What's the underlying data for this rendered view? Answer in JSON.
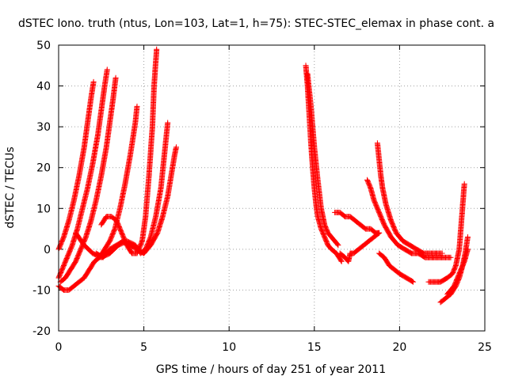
{
  "chart_data": {
    "type": "scatter",
    "title": "dSTEC Iono. truth (ntus, Lon=103, Lat=1, h=75): STEC-STEC_elemax in phase cont. a",
    "xlabel": "GPS time / hours of day 251 of year 2011",
    "ylabel": "dSTEC  / TECUs",
    "xlim": [
      0,
      25
    ],
    "ylim": [
      -20,
      50
    ],
    "xticks": [
      "0",
      "5",
      "10",
      "15",
      "20",
      "25"
    ],
    "yticks": [
      "-20",
      "-10",
      "0",
      "10",
      "20",
      "30",
      "40",
      "50"
    ],
    "grid": true,
    "marker": "+",
    "color": "#ff0000",
    "series": [
      {
        "x": [
          0.0,
          0.3,
          0.6,
          0.9,
          1.2,
          1.5,
          1.7,
          1.9,
          2.05
        ],
        "y": [
          0,
          3,
          7,
          12,
          18,
          25,
          31,
          37,
          41
        ]
      },
      {
        "x": [
          0.0,
          0.2,
          0.5,
          0.8,
          1.1,
          1.4,
          1.7,
          2.0,
          2.3,
          2.5,
          2.7,
          2.85
        ],
        "y": [
          -7,
          -5,
          -2,
          1,
          5,
          10,
          15,
          21,
          28,
          34,
          40,
          44
        ]
      },
      {
        "x": [
          0.1,
          0.4,
          0.7,
          1.0,
          1.3,
          1.6,
          1.9,
          2.2,
          2.5,
          2.8,
          3.0,
          3.2,
          3.35
        ],
        "y": [
          -8,
          -7,
          -5,
          -3,
          0,
          3,
          7,
          12,
          18,
          25,
          31,
          37,
          42
        ]
      },
      {
        "x": [
          0.0,
          0.3,
          0.6,
          0.9,
          1.2,
          1.5,
          1.8,
          2.1,
          2.4,
          2.7,
          3.0,
          3.3,
          3.6,
          3.9,
          4.2,
          4.5,
          4.6
        ],
        "y": [
          -9,
          -10,
          -10,
          -9,
          -8,
          -7,
          -5,
          -3,
          -2,
          0,
          2,
          5,
          10,
          16,
          23,
          31,
          35
        ]
      },
      {
        "x": [
          2.5,
          2.8,
          3.1,
          3.4,
          3.7,
          4.0,
          4.3,
          4.6,
          4.9,
          5.1,
          5.3,
          5.5,
          5.6,
          5.75
        ],
        "y": [
          6,
          8,
          8,
          7,
          4,
          1,
          -1,
          -1,
          2,
          8,
          18,
          30,
          40,
          49
        ]
      },
      {
        "x": [
          1.0,
          1.5,
          2.0,
          2.5,
          3.0,
          3.5,
          4.0,
          4.5,
          4.8,
          5.1,
          5.4,
          5.7,
          6.0,
          6.2,
          6.4
        ],
        "y": [
          4,
          1,
          -1,
          -2,
          -1,
          1,
          2,
          1,
          -1,
          0,
          3,
          8,
          15,
          23,
          31
        ]
      },
      {
        "x": [
          2.2,
          2.6,
          3.0,
          3.4,
          3.8,
          4.2,
          4.6,
          5.0,
          5.4,
          5.8,
          6.1,
          6.4,
          6.6,
          6.8,
          6.9
        ],
        "y": [
          -1,
          -2,
          0,
          1,
          2,
          1,
          0,
          -1,
          1,
          4,
          8,
          13,
          18,
          23,
          25
        ]
      },
      {
        "x": [
          14.5,
          14.6,
          14.7,
          14.8,
          14.9,
          15.0,
          15.1,
          15.2,
          15.4,
          15.6,
          15.8,
          16.0,
          16.3,
          16.6
        ],
        "y": [
          45,
          40,
          33,
          26,
          20,
          15,
          11,
          8,
          5,
          3,
          1,
          0,
          -1,
          -3
        ]
      },
      {
        "x": [
          14.6,
          14.8,
          15.0,
          15.2,
          15.4,
          15.6,
          15.8,
          16.0,
          16.2,
          16.4
        ],
        "y": [
          43,
          35,
          25,
          17,
          10,
          6,
          4,
          3,
          2,
          1
        ]
      },
      {
        "x": [
          16.5,
          16.8,
          17.0,
          17.1,
          17.3,
          17.6,
          17.9,
          18.2,
          18.5,
          18.8
        ],
        "y": [
          -1,
          -2,
          -3,
          -1,
          -1,
          0,
          1,
          2,
          3,
          4
        ]
      },
      {
        "x": [
          16.2,
          16.5,
          16.8,
          17.1,
          17.4,
          17.7,
          18.0,
          18.3,
          18.6,
          18.8
        ],
        "y": [
          9,
          9,
          8,
          8,
          7,
          6,
          5,
          5,
          4,
          4
        ]
      },
      {
        "x": [
          18.7,
          18.8,
          18.9,
          19.0,
          19.2,
          19.5,
          19.8,
          20.2,
          20.6,
          21.0,
          21.4,
          21.8,
          22.2,
          22.5
        ],
        "y": [
          26,
          22,
          18,
          15,
          11,
          7,
          4,
          2,
          1,
          0,
          -1,
          -1,
          -1,
          -1
        ]
      },
      {
        "x": [
          18.1,
          18.3,
          18.5,
          18.8,
          19.1,
          19.5,
          19.9,
          20.3,
          20.7,
          21.1,
          21.5,
          21.9,
          22.3,
          22.7,
          23.0
        ],
        "y": [
          17,
          15,
          12,
          9,
          6,
          3,
          1,
          0,
          -1,
          -1,
          -2,
          -2,
          -2,
          -2,
          -2
        ]
      },
      {
        "x": [
          18.8,
          19.1,
          19.4,
          19.7,
          20.0,
          20.4,
          20.8
        ],
        "y": [
          -1,
          -2,
          -4,
          -5,
          -6,
          -7,
          -8
        ]
      },
      {
        "x": [
          21.7,
          22.0,
          22.4,
          22.8,
          23.1,
          23.3,
          23.5,
          23.65,
          23.8
        ],
        "y": [
          -8,
          -8,
          -8,
          -7,
          -6,
          -4,
          0,
          8,
          16
        ]
      },
      {
        "x": [
          22.4,
          22.7,
          23.0,
          23.3,
          23.5,
          23.7,
          23.85,
          24.0
        ],
        "y": [
          -13,
          -12,
          -11,
          -9,
          -7,
          -4,
          -1,
          3
        ]
      },
      {
        "x": [
          22.8,
          23.0,
          23.2,
          23.4,
          23.6,
          23.8,
          24.0
        ],
        "y": [
          -11,
          -10,
          -9,
          -7,
          -5,
          -3,
          0
        ]
      }
    ]
  }
}
